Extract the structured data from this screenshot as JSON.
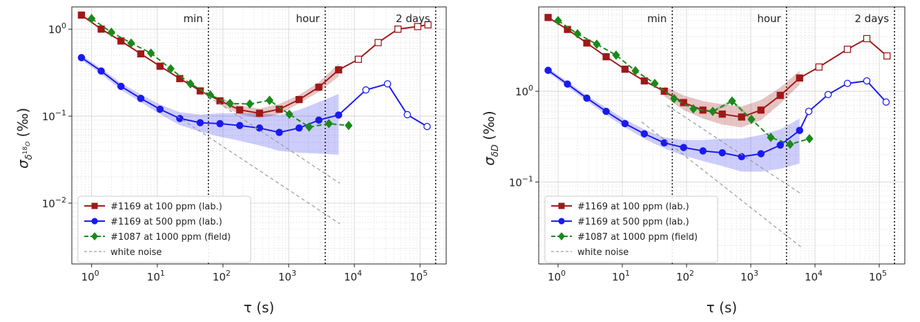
{
  "chart_data": [
    {
      "type": "line",
      "xlabel": "τ (s)",
      "ylabel_main": "σ",
      "ylabel_sub": "δ",
      "ylabel_supsub": "18",
      "ylabel_subsub": "O",
      "ylabel_unit": "(‰)",
      "xscale": "log",
      "yscale": "log",
      "xlim": [
        0.5,
        250000
      ],
      "ylim": [
        0.002,
        1.8
      ],
      "grid": true,
      "legend_position": "bottom-left",
      "xticks": [
        {
          "value": 1,
          "mant": "10",
          "exp": "0"
        },
        {
          "value": 10,
          "mant": "10",
          "exp": "1"
        },
        {
          "value": 100,
          "mant": "10",
          "exp": "2"
        },
        {
          "value": 1000,
          "mant": "10",
          "exp": "3"
        },
        {
          "value": 10000,
          "mant": "10",
          "exp": "4"
        },
        {
          "value": 100000,
          "mant": "10",
          "exp": "5"
        }
      ],
      "yticks": [
        {
          "value": 1,
          "mant": "10",
          "exp": "0"
        },
        {
          "value": 0.1,
          "mant": "10",
          "exp": "−1"
        },
        {
          "value": 0.01,
          "mant": "10",
          "exp": "−2"
        }
      ],
      "vlines": [
        {
          "x": 60,
          "label": "min"
        },
        {
          "x": 3600,
          "label": "hour"
        },
        {
          "x": 172800,
          "label": "2 days"
        }
      ],
      "series": [
        {
          "name": "#1169 at 100 ppm (lab.)",
          "color": "#a01818",
          "marker": "square",
          "linestyle": "solid",
          "x": [
            0.7,
            1.4,
            2.8,
            5.6,
            11,
            22,
            45,
            90,
            180,
            360,
            720,
            1440,
            2880,
            5760,
            11520,
            23040,
            46080,
            92160,
            132000
          ],
          "y": [
            1.45,
            1.0,
            0.73,
            0.52,
            0.375,
            0.27,
            0.195,
            0.15,
            0.118,
            0.108,
            0.12,
            0.155,
            0.215,
            0.34,
            0.45,
            0.7,
            1.0,
            1.07,
            1.12
          ],
          "open_from_x": 11520,
          "band_x": [
            90,
            180,
            360,
            720,
            1440,
            2880,
            5760
          ],
          "band_lo": [
            0.135,
            0.105,
            0.095,
            0.105,
            0.14,
            0.19,
            0.285
          ],
          "band_hi": [
            0.165,
            0.132,
            0.122,
            0.138,
            0.175,
            0.245,
            0.4
          ]
        },
        {
          "name": "#1169 at 500 ppm (lab.)",
          "color": "#1a1aee",
          "marker": "circle",
          "linestyle": "solid",
          "x": [
            0.7,
            1.4,
            2.8,
            5.6,
            11,
            22,
            45,
            90,
            180,
            360,
            720,
            1440,
            2880,
            5760,
            15000,
            32000,
            64000,
            128000
          ],
          "y": [
            0.47,
            0.33,
            0.22,
            0.16,
            0.12,
            0.094,
            0.084,
            0.082,
            0.078,
            0.073,
            0.065,
            0.073,
            0.09,
            0.103,
            0.2,
            0.235,
            0.104,
            0.076
          ],
          "open_from_x": 15000,
          "band_x": [
            0.7,
            1.4,
            2.8,
            5.6,
            11,
            22,
            45,
            90,
            180,
            360,
            720,
            1440,
            2880,
            5760
          ],
          "band_lo": [
            0.44,
            0.305,
            0.2,
            0.145,
            0.105,
            0.079,
            0.066,
            0.058,
            0.052,
            0.046,
            0.04,
            0.038,
            0.037,
            0.036
          ],
          "band_hi": [
            0.5,
            0.355,
            0.24,
            0.178,
            0.136,
            0.111,
            0.104,
            0.108,
            0.108,
            0.108,
            0.103,
            0.118,
            0.145,
            0.18
          ]
        },
        {
          "name": "#1087 at 1000 ppm (field)",
          "color": "#1a8a1a",
          "marker": "diamond",
          "linestyle": "dashed",
          "x": [
            1,
            2,
            4,
            8,
            16,
            32,
            64,
            128,
            256,
            512,
            1024,
            2048,
            4096,
            8192
          ],
          "y": [
            1.32,
            0.92,
            0.69,
            0.53,
            0.35,
            0.235,
            0.175,
            0.14,
            0.138,
            0.152,
            0.105,
            0.075,
            0.082,
            0.078
          ]
        },
        {
          "name": "white noise",
          "color": "#999999",
          "marker": "none",
          "linestyle": "dashed",
          "x": [
            20,
            6000
          ],
          "y": [
            0.1,
            0.0058
          ],
          "extra_x": [
            50,
            6000
          ],
          "extra_y": [
            0.185,
            0.0169
          ]
        }
      ]
    },
    {
      "type": "line",
      "xlabel": "τ (s)",
      "ylabel_main": "σ",
      "ylabel_sub": "δD",
      "ylabel_unit": "(‰)",
      "xscale": "log",
      "yscale": "log",
      "xlim": [
        0.5,
        250000
      ],
      "ylim": [
        0.0125,
        8.5
      ],
      "grid": true,
      "legend_position": "bottom-left",
      "xticks": [
        {
          "value": 1,
          "mant": "10",
          "exp": "0"
        },
        {
          "value": 10,
          "mant": "10",
          "exp": "1"
        },
        {
          "value": 100,
          "mant": "10",
          "exp": "2"
        },
        {
          "value": 1000,
          "mant": "10",
          "exp": "3"
        },
        {
          "value": 10000,
          "mant": "10",
          "exp": "4"
        },
        {
          "value": 100000,
          "mant": "10",
          "exp": "5"
        }
      ],
      "yticks": [
        {
          "value": 1,
          "mant": "10",
          "exp": "0"
        },
        {
          "value": 0.1,
          "mant": "10",
          "exp": "−1"
        }
      ],
      "vlines": [
        {
          "x": 60,
          "label": "min"
        },
        {
          "x": 3600,
          "label": "hour"
        },
        {
          "x": 172800,
          "label": "2 days"
        }
      ],
      "series": [
        {
          "name": "#1169 at 100 ppm (lab.)",
          "color": "#a01818",
          "marker": "square",
          "linestyle": "solid",
          "x": [
            0.7,
            1.4,
            2.8,
            5.6,
            11,
            22,
            45,
            90,
            180,
            360,
            720,
            1440,
            2880,
            5760,
            11520,
            32000,
            64000,
            132000
          ],
          "y": [
            6.5,
            4.8,
            3.4,
            2.4,
            1.75,
            1.3,
            1.0,
            0.75,
            0.62,
            0.56,
            0.52,
            0.62,
            0.9,
            1.4,
            1.85,
            2.9,
            3.8,
            2.45
          ],
          "open_from_x": 11520,
          "band_x": [
            45,
            90,
            180,
            360,
            720,
            1440,
            2880,
            5760
          ],
          "band_lo": [
            0.88,
            0.62,
            0.5,
            0.43,
            0.4,
            0.48,
            0.73,
            1.18
          ],
          "band_hi": [
            1.14,
            0.9,
            0.78,
            0.72,
            0.68,
            0.8,
            1.1,
            1.68
          ]
        },
        {
          "name": "#1169 at 500 ppm (lab.)",
          "color": "#1a1aee",
          "marker": "circle",
          "linestyle": "solid",
          "x": [
            0.7,
            1.4,
            2.8,
            5.6,
            11,
            22,
            45,
            90,
            180,
            360,
            720,
            1440,
            2880,
            5760,
            8000,
            16000,
            32000,
            64000,
            128000
          ],
          "y": [
            1.7,
            1.2,
            0.84,
            0.6,
            0.44,
            0.34,
            0.27,
            0.24,
            0.22,
            0.21,
            0.19,
            0.205,
            0.255,
            0.37,
            0.6,
            0.92,
            1.22,
            1.3,
            0.76
          ],
          "open_from_x": 8000,
          "band_x": [
            0.7,
            1.4,
            2.8,
            5.6,
            11,
            22,
            45,
            90,
            180,
            360,
            720,
            1440,
            2880,
            5760
          ],
          "band_lo": [
            1.6,
            1.12,
            0.78,
            0.55,
            0.4,
            0.3,
            0.235,
            0.195,
            0.17,
            0.15,
            0.13,
            0.13,
            0.14,
            0.16
          ],
          "band_hi": [
            1.8,
            1.28,
            0.9,
            0.66,
            0.49,
            0.38,
            0.31,
            0.29,
            0.29,
            0.3,
            0.3,
            0.33,
            0.38,
            0.5
          ]
        },
        {
          "name": "#1087 at 1000 ppm (field)",
          "color": "#1a8a1a",
          "marker": "diamond",
          "linestyle": "dashed",
          "x": [
            1,
            2,
            4,
            8,
            16,
            32,
            64,
            128,
            256,
            512,
            1024,
            2048,
            4096,
            8192
          ],
          "y": [
            6.0,
            4.3,
            3.3,
            2.5,
            1.68,
            1.22,
            0.83,
            0.64,
            0.6,
            0.78,
            0.49,
            0.31,
            0.26,
            0.3
          ],
          "band_x": [
            128,
            256,
            512,
            1024
          ],
          "band_lo": [
            0.63,
            0.58,
            0.74,
            0.47
          ],
          "band_hi": [
            0.65,
            0.62,
            0.82,
            0.51
          ]
        },
        {
          "name": "white noise",
          "color": "#999999",
          "marker": "none",
          "linestyle": "dashed",
          "x": [
            20,
            6000
          ],
          "y": [
            0.46,
            0.0193
          ],
          "extra_x": [
            50,
            6000
          ],
          "extra_y": [
            0.7,
            0.0745
          ]
        }
      ]
    }
  ]
}
